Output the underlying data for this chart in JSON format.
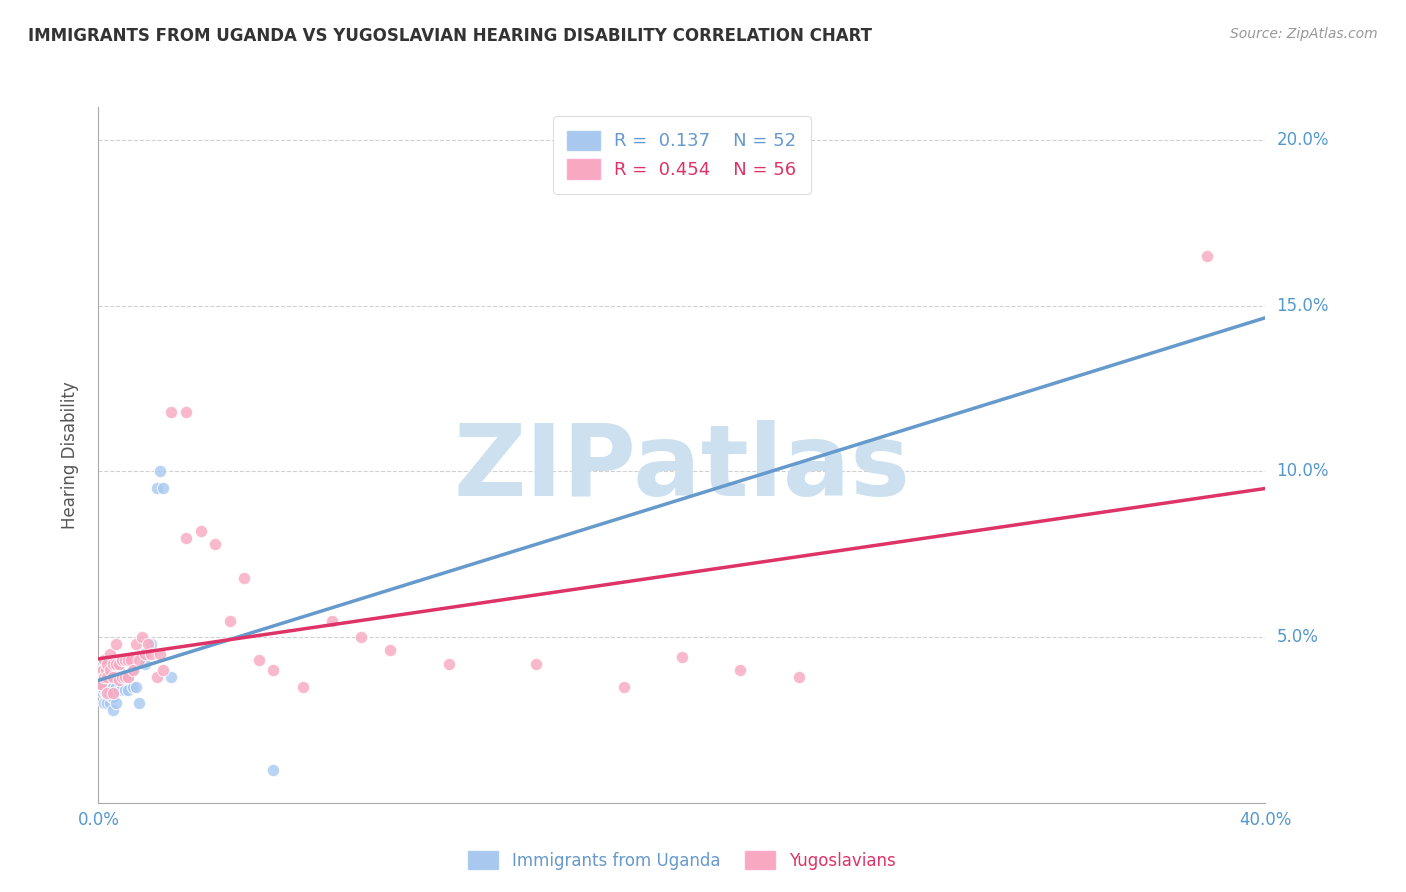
{
  "title": "IMMIGRANTS FROM UGANDA VS YUGOSLAVIAN HEARING DISABILITY CORRELATION CHART",
  "source_text": "Source: ZipAtlas.com",
  "ylabel": "Hearing Disability",
  "legend_label_1": "Immigrants from Uganda",
  "legend_label_2": "Yugoslavians",
  "R1": 0.137,
  "N1": 52,
  "R2": 0.454,
  "N2": 56,
  "color_uganda": "#a8c8f0",
  "color_yugoslavia": "#f8a8c0",
  "trendline_color_uganda": "#6699cc",
  "trendline_color_yugoslavia": "#dd3366",
  "xlim": [
    0.0,
    0.4
  ],
  "ylim": [
    0.0,
    0.21
  ],
  "xtick_positions": [
    0.0,
    0.4
  ],
  "xtick_labels": [
    "0.0%",
    "40.0%"
  ],
  "ytick_positions": [
    0.0,
    0.05,
    0.1,
    0.15,
    0.2
  ],
  "ytick_labels": [
    "",
    "5.0%",
    "10.0%",
    "15.0%",
    "20.0%"
  ],
  "watermark_text": "ZIPatlas",
  "watermark_color": "#cce0f0",
  "background_color": "#ffffff",
  "grid_color": "#cccccc",
  "tick_color": "#5599cc",
  "uganda_x": [
    0.0005,
    0.001,
    0.001,
    0.0015,
    0.0015,
    0.0015,
    0.002,
    0.002,
    0.002,
    0.002,
    0.0025,
    0.0025,
    0.003,
    0.003,
    0.003,
    0.003,
    0.0035,
    0.0035,
    0.004,
    0.004,
    0.004,
    0.004,
    0.0045,
    0.0045,
    0.005,
    0.005,
    0.005,
    0.005,
    0.006,
    0.006,
    0.006,
    0.007,
    0.007,
    0.007,
    0.008,
    0.008,
    0.009,
    0.009,
    0.01,
    0.01,
    0.012,
    0.012,
    0.013,
    0.014,
    0.015,
    0.016,
    0.018,
    0.02,
    0.021,
    0.022,
    0.025,
    0.06
  ],
  "uganda_y": [
    0.038,
    0.04,
    0.036,
    0.042,
    0.038,
    0.033,
    0.04,
    0.037,
    0.034,
    0.03,
    0.038,
    0.033,
    0.04,
    0.037,
    0.034,
    0.03,
    0.038,
    0.033,
    0.04,
    0.037,
    0.034,
    0.03,
    0.036,
    0.032,
    0.038,
    0.035,
    0.032,
    0.028,
    0.038,
    0.035,
    0.03,
    0.04,
    0.038,
    0.034,
    0.038,
    0.035,
    0.038,
    0.034,
    0.038,
    0.034,
    0.04,
    0.035,
    0.035,
    0.03,
    0.045,
    0.042,
    0.048,
    0.095,
    0.1,
    0.095,
    0.038,
    0.01
  ],
  "yugoslavia_x": [
    0.0008,
    0.001,
    0.001,
    0.0015,
    0.002,
    0.002,
    0.0025,
    0.003,
    0.003,
    0.003,
    0.004,
    0.004,
    0.005,
    0.005,
    0.005,
    0.006,
    0.006,
    0.007,
    0.007,
    0.008,
    0.008,
    0.009,
    0.009,
    0.01,
    0.01,
    0.011,
    0.012,
    0.013,
    0.014,
    0.015,
    0.016,
    0.017,
    0.018,
    0.02,
    0.021,
    0.022,
    0.025,
    0.03,
    0.03,
    0.035,
    0.04,
    0.045,
    0.05,
    0.055,
    0.06,
    0.07,
    0.08,
    0.09,
    0.1,
    0.12,
    0.15,
    0.18,
    0.2,
    0.22,
    0.24,
    0.38
  ],
  "yugoslavia_y": [
    0.036,
    0.04,
    0.036,
    0.04,
    0.043,
    0.038,
    0.04,
    0.042,
    0.038,
    0.033,
    0.045,
    0.04,
    0.042,
    0.038,
    0.033,
    0.048,
    0.042,
    0.042,
    0.037,
    0.043,
    0.038,
    0.043,
    0.038,
    0.043,
    0.038,
    0.043,
    0.04,
    0.048,
    0.043,
    0.05,
    0.045,
    0.048,
    0.045,
    0.038,
    0.045,
    0.04,
    0.118,
    0.118,
    0.08,
    0.082,
    0.078,
    0.055,
    0.068,
    0.043,
    0.04,
    0.035,
    0.055,
    0.05,
    0.046,
    0.042,
    0.042,
    0.035,
    0.044,
    0.04,
    0.038,
    0.165
  ]
}
